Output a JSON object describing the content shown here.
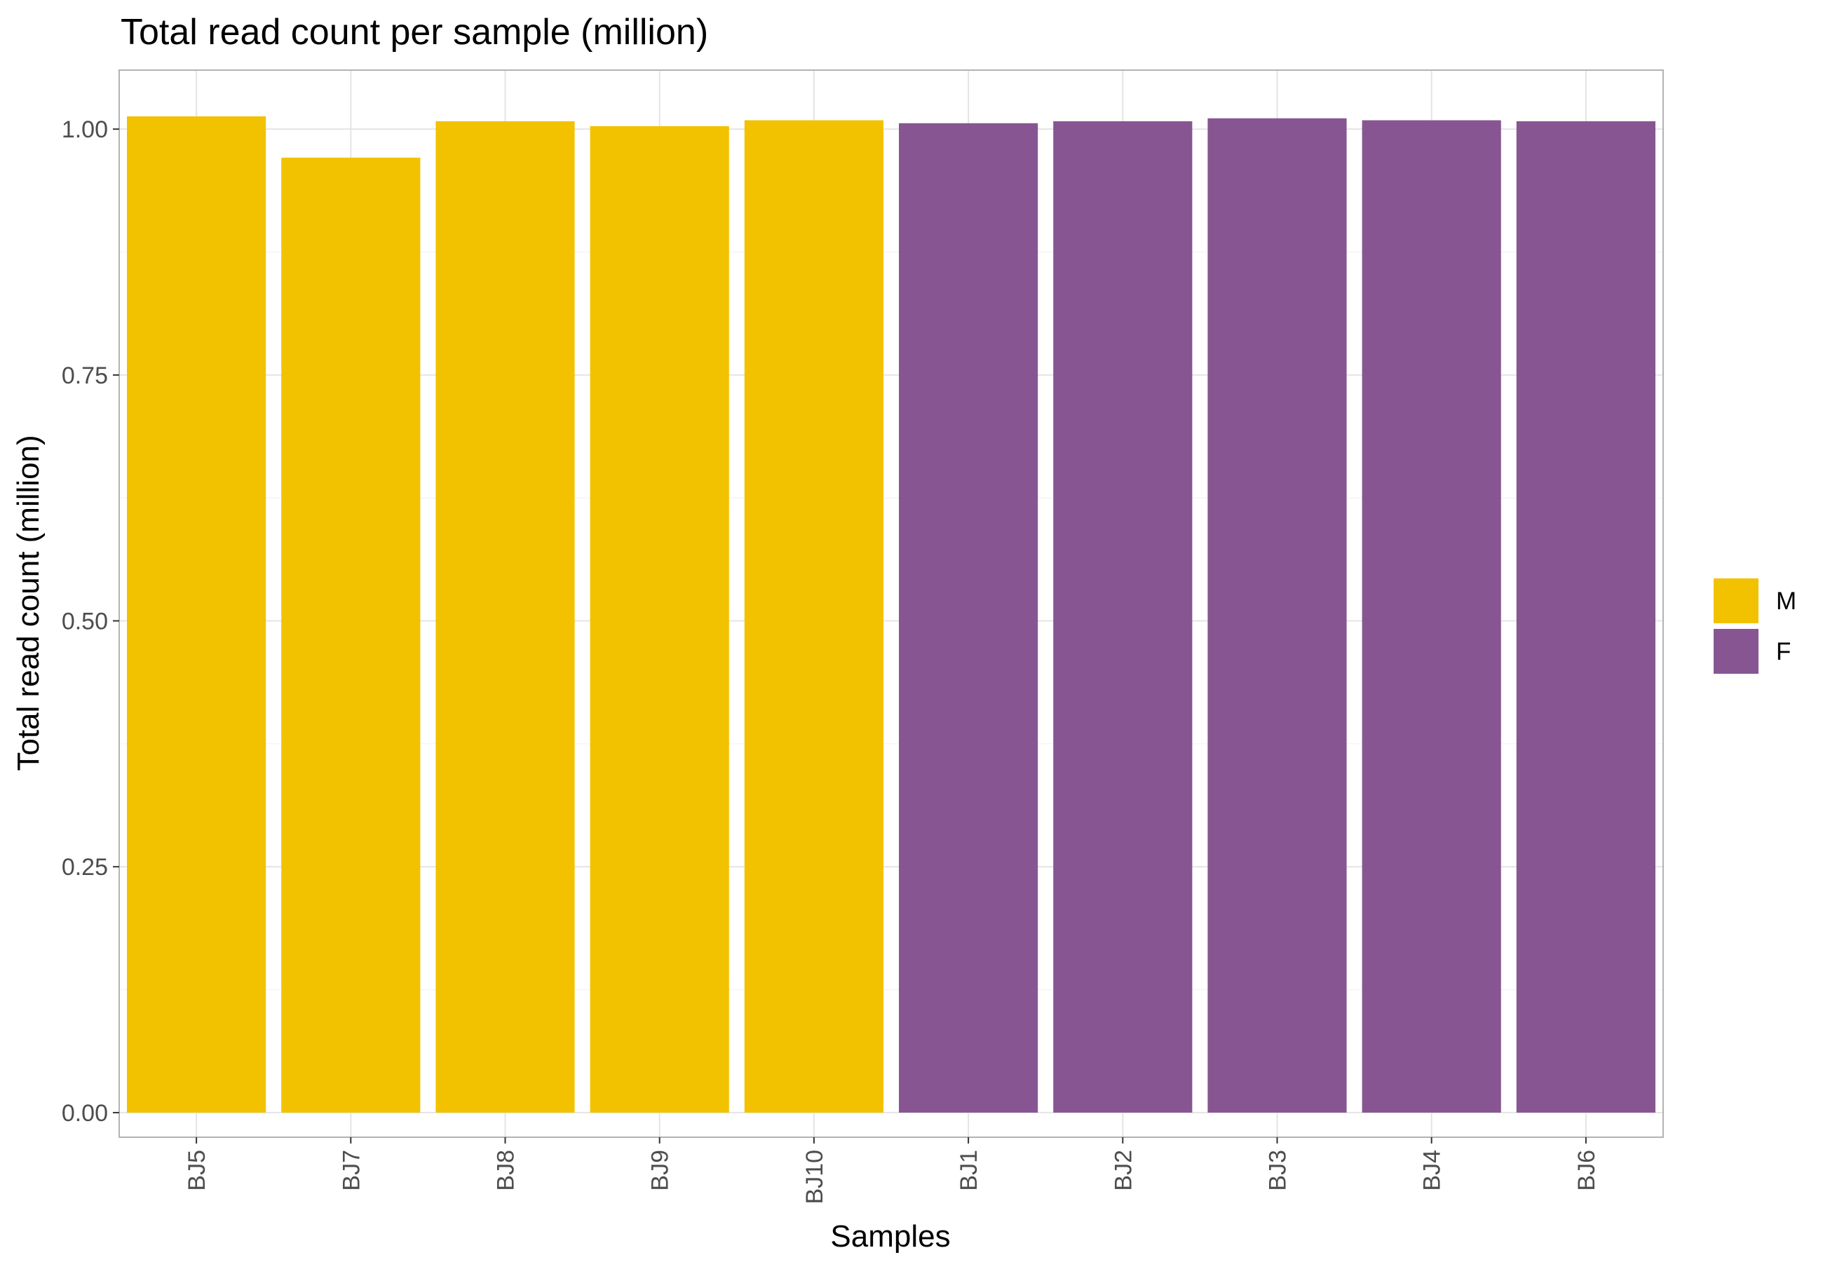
{
  "chart_data": {
    "type": "bar",
    "title": "Total read count per sample (million)",
    "xlabel": "Samples",
    "ylabel": "Total read count (million)",
    "ylim": [
      -0.025,
      1.06
    ],
    "yticks": [
      "0.00",
      "0.25",
      "0.50",
      "0.75",
      "1.00"
    ],
    "ytick_values": [
      0,
      0.25,
      0.5,
      0.75,
      1.0
    ],
    "grid": true,
    "legend_position": "right",
    "categories": [
      "BJ5",
      "BJ7",
      "BJ8",
      "BJ9",
      "BJ10",
      "BJ1",
      "BJ2",
      "BJ3",
      "BJ4",
      "BJ6"
    ],
    "values": [
      1.013,
      0.971,
      1.008,
      1.003,
      1.009,
      1.006,
      1.008,
      1.011,
      1.009,
      1.008
    ],
    "groups": [
      "M",
      "M",
      "M",
      "M",
      "M",
      "F",
      "F",
      "F",
      "F",
      "F"
    ],
    "legend": [
      {
        "label": "M",
        "color": "#F2C200"
      },
      {
        "label": "F",
        "color": "#875692"
      }
    ]
  }
}
